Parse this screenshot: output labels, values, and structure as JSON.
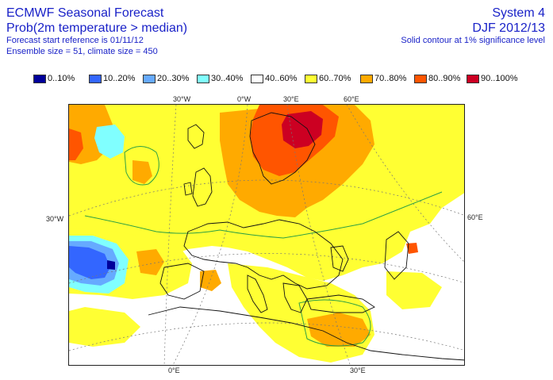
{
  "header": {
    "title": "ECMWF Seasonal Forecast",
    "variable": "Prob(2m temperature > median)",
    "start_reference": "Forecast start reference is 01/11/12",
    "ensemble": "Ensemble size = 51, climate size = 450",
    "system": "System 4",
    "season": "DJF 2012/13",
    "significance": "Solid contour at 1% significance level"
  },
  "legend": [
    {
      "label": "0..10%",
      "color": "#00009a"
    },
    {
      "label": "10..20%",
      "color": "#3366ff"
    },
    {
      "label": "20..30%",
      "color": "#66aaff"
    },
    {
      "label": "30..40%",
      "color": "#80ffff"
    },
    {
      "label": "40..60%",
      "color": "#ffffff"
    },
    {
      "label": "60..70%",
      "color": "#ffff33"
    },
    {
      "label": "70..80%",
      "color": "#ffaa00"
    },
    {
      "label": "80..90%",
      "color": "#ff5500"
    },
    {
      "label": "90..100%",
      "color": "#cc0022"
    }
  ],
  "axes": {
    "top": [
      "30°W",
      "0°W",
      "30°E",
      "60°E"
    ],
    "left": [
      "30°W"
    ],
    "right": [
      "60°E"
    ],
    "bottom": [
      "0°E",
      "30°E"
    ]
  }
}
